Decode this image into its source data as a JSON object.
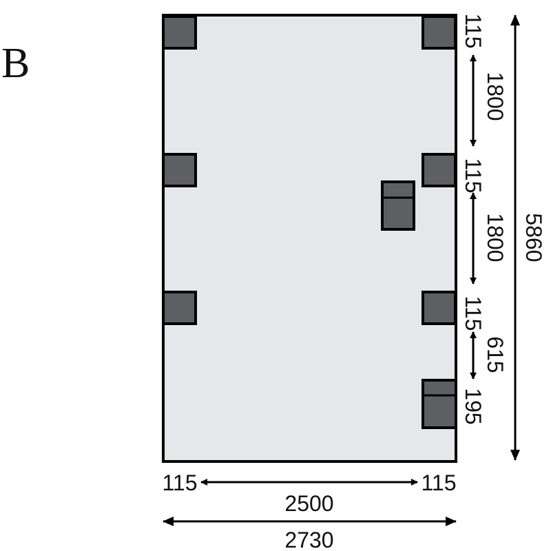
{
  "figure_label": "B",
  "colors": {
    "floor": "#e6e7e9",
    "post": "#5d5f61",
    "outline": "#000000"
  },
  "dimensions": {
    "right_side": [
      "115",
      "1800",
      "115",
      "1800",
      "115",
      "615",
      "195"
    ],
    "overall_length": "5860",
    "bottom_edge_left": "115",
    "bottom_inner_span": "2500",
    "bottom_edge_right": "115",
    "overall_width": "2730"
  }
}
